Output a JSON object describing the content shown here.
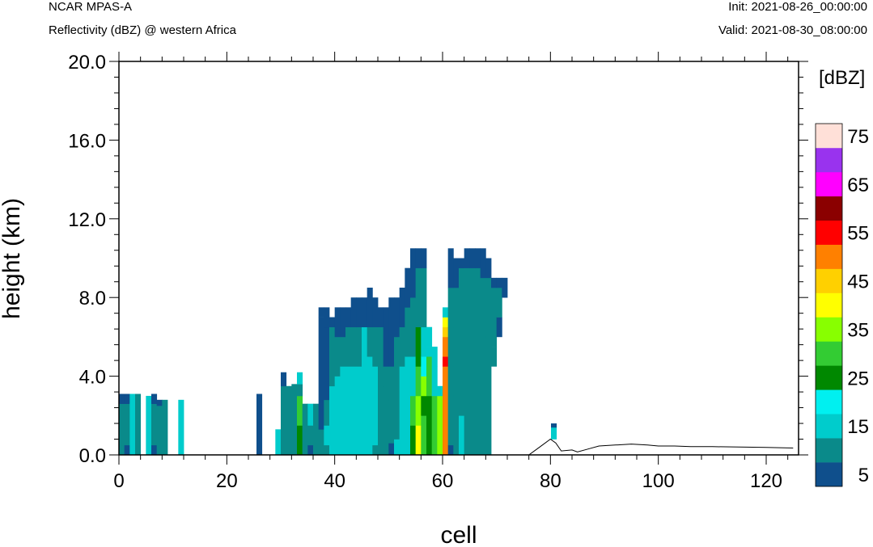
{
  "header": {
    "model": "NCAR MPAS-A",
    "field": "Reflectivity (dBZ) @ western Africa",
    "init": "Init: 2021-08-26_00:00:00",
    "valid": "Valid: 2021-08-30_08:00:00"
  },
  "chart_data": {
    "type": "heatmap",
    "title": "Reflectivity (dBZ) @ western Africa",
    "xlabel": "cell",
    "ylabel": "height (km)",
    "xlim": [
      0,
      126
    ],
    "ylim": [
      0,
      20
    ],
    "x_ticks": [
      0,
      20,
      40,
      60,
      80,
      100,
      120
    ],
    "y_ticks": [
      "0.0",
      "4.0",
      "8.0",
      "12.0",
      "16.0",
      "20.0"
    ],
    "colorbar": {
      "unit": "[dBZ]",
      "levels": [
        5,
        10,
        15,
        20,
        25,
        30,
        35,
        40,
        45,
        50,
        55,
        60,
        65,
        70,
        75
      ],
      "labels": [
        "5",
        "15",
        "25",
        "35",
        "45",
        "55",
        "65",
        "75"
      ],
      "colors": [
        "#0f4f8c",
        "#0a8a8a",
        "#00cccc",
        "#00f0f0",
        "#008800",
        "#33cc33",
        "#88ff00",
        "#ffff00",
        "#ffd000",
        "#ff8000",
        "#ff0000",
        "#8b0000",
        "#ff00ff",
        "#9933ee",
        "#ffe0d8"
      ]
    },
    "columns": [
      {
        "x": 0.5,
        "segs": [
          [
            0.0,
            0.5,
            1
          ],
          [
            0.5,
            2.6,
            1
          ],
          [
            2.6,
            3.1,
            0
          ]
        ]
      },
      {
        "x": 1.5,
        "segs": [
          [
            0.0,
            0.5,
            0
          ],
          [
            0.5,
            2.6,
            1
          ],
          [
            2.6,
            3.1,
            0
          ]
        ]
      },
      {
        "x": 2.5,
        "segs": [
          [
            0.0,
            2.6,
            2
          ],
          [
            2.6,
            3.1,
            2
          ]
        ]
      },
      {
        "x": 3.5,
        "segs": [
          [
            0.0,
            2.6,
            1
          ],
          [
            2.6,
            3.1,
            1
          ]
        ]
      },
      {
        "x": 5.5,
        "segs": [
          [
            0.0,
            3.0,
            2
          ]
        ]
      },
      {
        "x": 6.5,
        "segs": [
          [
            0.0,
            0.5,
            0
          ],
          [
            0.5,
            2.6,
            1
          ],
          [
            2.6,
            3.1,
            0
          ]
        ]
      },
      {
        "x": 7.5,
        "segs": [
          [
            0.0,
            0.5,
            1
          ],
          [
            0.5,
            2.5,
            1
          ],
          [
            2.5,
            2.8,
            0
          ]
        ]
      },
      {
        "x": 8.5,
        "segs": [
          [
            0.0,
            2.8,
            1
          ]
        ]
      },
      {
        "x": 11.5,
        "segs": [
          [
            0.0,
            2.8,
            2
          ]
        ]
      },
      {
        "x": 26.0,
        "segs": [
          [
            0.0,
            3.1,
            0
          ]
        ]
      },
      {
        "x": 29.5,
        "segs": [
          [
            0.0,
            1.3,
            2
          ]
        ]
      },
      {
        "x": 30.5,
        "segs": [
          [
            0.0,
            0.5,
            1
          ],
          [
            0.5,
            3.5,
            1
          ],
          [
            3.5,
            4.2,
            0
          ]
        ]
      },
      {
        "x": 31.5,
        "segs": [
          [
            0.0,
            1.5,
            1
          ],
          [
            1.5,
            3.5,
            1
          ]
        ]
      },
      {
        "x": 32.5,
        "segs": [
          [
            0.0,
            1.4,
            1
          ],
          [
            1.4,
            3.6,
            1
          ]
        ]
      },
      {
        "x": 33.5,
        "segs": [
          [
            0.0,
            1.5,
            4
          ],
          [
            1.5,
            3.0,
            5
          ],
          [
            3.0,
            3.6,
            1
          ],
          [
            3.6,
            4.2,
            2
          ]
        ]
      },
      {
        "x": 34.5,
        "segs": [
          [
            0.0,
            2.6,
            1
          ]
        ]
      },
      {
        "x": 35.5,
        "segs": [
          [
            0.0,
            0.5,
            0
          ],
          [
            0.5,
            1.5,
            1
          ],
          [
            1.5,
            2.6,
            2
          ]
        ]
      },
      {
        "x": 36.5,
        "segs": [
          [
            0.0,
            2.6,
            1
          ]
        ]
      },
      {
        "x": 37.5,
        "segs": [
          [
            0.0,
            1.3,
            1
          ],
          [
            1.3,
            2.6,
            0
          ],
          [
            2.6,
            7.0,
            0
          ],
          [
            7.0,
            7.5,
            0
          ]
        ]
      },
      {
        "x": 38.5,
        "segs": [
          [
            0.0,
            0.5,
            1
          ],
          [
            0.5,
            1.5,
            2
          ],
          [
            1.5,
            2.8,
            1
          ],
          [
            2.8,
            6.5,
            0
          ],
          [
            6.5,
            7.5,
            0
          ]
        ]
      },
      {
        "x": 39.5,
        "segs": [
          [
            0.0,
            3.5,
            2
          ],
          [
            3.5,
            6.5,
            1
          ],
          [
            6.5,
            7.0,
            0
          ]
        ]
      },
      {
        "x": 40.5,
        "segs": [
          [
            0.0,
            4.0,
            2
          ],
          [
            4.0,
            6.0,
            1
          ],
          [
            6.0,
            7.5,
            0
          ]
        ]
      },
      {
        "x": 41.5,
        "segs": [
          [
            0.0,
            4.5,
            2
          ],
          [
            4.5,
            6.0,
            1
          ],
          [
            6.0,
            7.5,
            0
          ]
        ]
      },
      {
        "x": 42.5,
        "segs": [
          [
            0.0,
            4.5,
            2
          ],
          [
            4.5,
            6.5,
            1
          ],
          [
            6.5,
            7.5,
            0
          ]
        ]
      },
      {
        "x": 43.5,
        "segs": [
          [
            0.0,
            4.5,
            2
          ],
          [
            4.5,
            6.5,
            1
          ],
          [
            6.5,
            8.0,
            0
          ]
        ]
      },
      {
        "x": 44.5,
        "segs": [
          [
            0.0,
            4.5,
            2
          ],
          [
            4.5,
            6.5,
            1
          ],
          [
            6.5,
            8.0,
            0
          ]
        ]
      },
      {
        "x": 45.5,
        "segs": [
          [
            0.0,
            4.5,
            2
          ],
          [
            4.5,
            6.5,
            2
          ],
          [
            6.5,
            8.0,
            0
          ]
        ]
      },
      {
        "x": 46.5,
        "segs": [
          [
            0.0,
            5.0,
            2
          ],
          [
            5.0,
            6.5,
            1
          ],
          [
            6.5,
            8.5,
            0
          ]
        ]
      },
      {
        "x": 47.5,
        "segs": [
          [
            0.0,
            0.5,
            1
          ],
          [
            0.5,
            4.5,
            2
          ],
          [
            4.5,
            6.5,
            1
          ],
          [
            6.5,
            8.0,
            0
          ]
        ]
      },
      {
        "x": 48.5,
        "segs": [
          [
            0.0,
            3.5,
            1
          ],
          [
            3.5,
            6.5,
            1
          ],
          [
            6.5,
            7.5,
            0
          ]
        ]
      },
      {
        "x": 49.5,
        "segs": [
          [
            0.0,
            3.0,
            1
          ],
          [
            3.0,
            4.5,
            1
          ],
          [
            4.5,
            7.5,
            0
          ]
        ]
      },
      {
        "x": 50.5,
        "segs": [
          [
            0.0,
            0.6,
            0
          ],
          [
            0.6,
            2.8,
            1
          ],
          [
            2.8,
            4.5,
            1
          ],
          [
            4.5,
            8.0,
            0
          ]
        ]
      },
      {
        "x": 51.5,
        "segs": [
          [
            0.0,
            0.8,
            2
          ],
          [
            0.8,
            2.8,
            1
          ],
          [
            2.8,
            6.0,
            1
          ],
          [
            6.0,
            8.0,
            0
          ]
        ]
      },
      {
        "x": 52.5,
        "segs": [
          [
            0.0,
            4.5,
            2
          ],
          [
            4.5,
            6.5,
            1
          ],
          [
            6.5,
            8.5,
            0
          ]
        ]
      },
      {
        "x": 53.5,
        "segs": [
          [
            0.0,
            5.0,
            2
          ],
          [
            5.0,
            7.5,
            1
          ],
          [
            7.5,
            9.5,
            0
          ]
        ]
      },
      {
        "x": 54.5,
        "segs": [
          [
            0.0,
            1.5,
            4
          ],
          [
            1.5,
            3.0,
            5
          ],
          [
            3.0,
            5.0,
            2
          ],
          [
            5.0,
            8.0,
            1
          ],
          [
            8.0,
            10.5,
            0
          ]
        ]
      },
      {
        "x": 55.5,
        "segs": [
          [
            0.0,
            1.5,
            7
          ],
          [
            1.5,
            3.0,
            6
          ],
          [
            3.0,
            4.5,
            5
          ],
          [
            4.5,
            6.5,
            4
          ],
          [
            6.5,
            9.5,
            1
          ],
          [
            9.5,
            10.5,
            0
          ]
        ]
      },
      {
        "x": 56.5,
        "segs": [
          [
            0.0,
            2.0,
            5
          ],
          [
            2.0,
            3.0,
            4
          ],
          [
            3.0,
            4.0,
            6
          ],
          [
            4.0,
            5.0,
            3
          ],
          [
            5.0,
            6.5,
            2
          ],
          [
            6.5,
            9.5,
            1
          ],
          [
            9.5,
            10.5,
            0
          ]
        ]
      },
      {
        "x": 57.5,
        "segs": [
          [
            0.0,
            3.0,
            4
          ],
          [
            3.0,
            5.0,
            5
          ],
          [
            5.0,
            5.5,
            2
          ],
          [
            5.5,
            6.5,
            2
          ]
        ]
      },
      {
        "x": 58.5,
        "segs": [
          [
            0.0,
            3.0,
            5
          ],
          [
            3.0,
            4.5,
            2
          ],
          [
            4.5,
            5.5,
            2
          ]
        ]
      },
      {
        "x": 59.5,
        "segs": [
          [
            0.0,
            3.0,
            6
          ],
          [
            3.0,
            3.5,
            2
          ]
        ]
      },
      {
        "x": 60.5,
        "segs": [
          [
            0.0,
            4.5,
            9
          ],
          [
            4.5,
            5.0,
            10
          ],
          [
            5.0,
            6.0,
            9
          ],
          [
            6.0,
            6.5,
            8
          ],
          [
            6.5,
            7.0,
            7
          ],
          [
            7.0,
            7.5,
            2
          ]
        ]
      },
      {
        "x": 61.5,
        "segs": [
          [
            0.0,
            0.5,
            0
          ],
          [
            0.5,
            2.6,
            1
          ],
          [
            2.6,
            6.5,
            1
          ],
          [
            6.5,
            8.5,
            1
          ],
          [
            8.5,
            10.5,
            0
          ]
        ]
      },
      {
        "x": 62.5,
        "segs": [
          [
            0.0,
            3.0,
            1
          ],
          [
            3.0,
            4.5,
            1
          ],
          [
            4.5,
            8.5,
            1
          ],
          [
            8.5,
            10.0,
            0
          ]
        ]
      },
      {
        "x": 63.5,
        "segs": [
          [
            0.0,
            2.0,
            2
          ],
          [
            2.0,
            4.5,
            1
          ],
          [
            4.5,
            9.5,
            1
          ],
          [
            9.5,
            10.0,
            0
          ]
        ]
      },
      {
        "x": 64.5,
        "segs": [
          [
            0.0,
            2.6,
            1
          ],
          [
            2.6,
            9.5,
            1
          ],
          [
            9.5,
            10.5,
            0
          ]
        ]
      },
      {
        "x": 65.5,
        "segs": [
          [
            0.0,
            2.6,
            1
          ],
          [
            2.6,
            9.5,
            1
          ],
          [
            9.5,
            10.5,
            0
          ]
        ]
      },
      {
        "x": 66.5,
        "segs": [
          [
            0.0,
            3.0,
            1
          ],
          [
            3.0,
            9.5,
            1
          ],
          [
            9.5,
            10.5,
            0
          ]
        ]
      },
      {
        "x": 67.5,
        "segs": [
          [
            0.0,
            2.6,
            1
          ],
          [
            2.6,
            9.0,
            1
          ],
          [
            9.0,
            10.5,
            0
          ]
        ]
      },
      {
        "x": 68.5,
        "segs": [
          [
            0.0,
            6.0,
            1
          ],
          [
            6.0,
            9.0,
            1
          ],
          [
            9.0,
            10.0,
            0
          ]
        ]
      },
      {
        "x": 69.5,
        "segs": [
          [
            4.5,
            5.5,
            1
          ],
          [
            5.5,
            8.5,
            1
          ],
          [
            8.5,
            9.0,
            0
          ]
        ]
      },
      {
        "x": 70.5,
        "segs": [
          [
            6.0,
            7.0,
            0
          ],
          [
            7.0,
            8.5,
            1
          ],
          [
            8.5,
            9.0,
            0
          ]
        ]
      },
      {
        "x": 71.5,
        "segs": [
          [
            8.0,
            9.0,
            0
          ]
        ]
      },
      {
        "x": 80.6,
        "segs": [
          [
            0.8,
            1.4,
            2
          ],
          [
            1.4,
            1.6,
            0
          ]
        ]
      }
    ],
    "terrain": [
      [
        0,
        0
      ],
      [
        76,
        0
      ],
      [
        78,
        0.4
      ],
      [
        80,
        0.8
      ],
      [
        81,
        0.6
      ],
      [
        82,
        0.2
      ],
      [
        84,
        0.25
      ],
      [
        85,
        0.15
      ],
      [
        87,
        0.3
      ],
      [
        89,
        0.45
      ],
      [
        92,
        0.5
      ],
      [
        95,
        0.55
      ],
      [
        98,
        0.5
      ],
      [
        100,
        0.45
      ],
      [
        103,
        0.45
      ],
      [
        106,
        0.42
      ],
      [
        110,
        0.42
      ],
      [
        115,
        0.4
      ],
      [
        120,
        0.38
      ],
      [
        125,
        0.35
      ]
    ]
  }
}
